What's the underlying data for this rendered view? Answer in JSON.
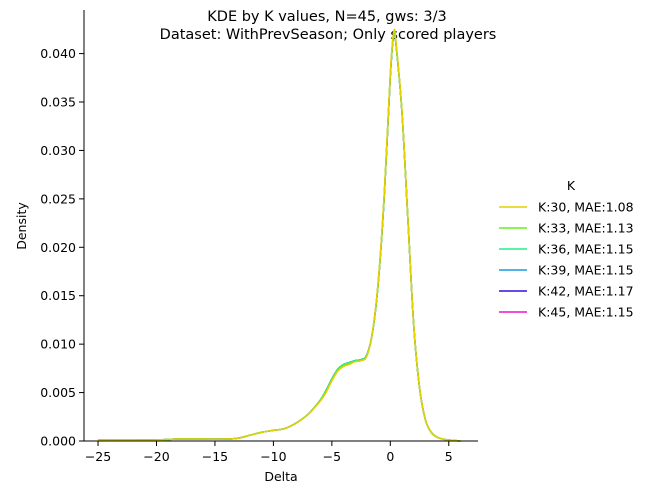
{
  "chart_data": {
    "type": "line",
    "title": "KDE by K values, N=45, gws: 3/3",
    "subtitle": "Dataset: WithPrevSeason; Only scored players",
    "xlabel": "Delta",
    "ylabel": "Density",
    "xlim": [
      -26.2,
      7.5
    ],
    "ylim": [
      0,
      0.0445
    ],
    "xticks": [
      -25,
      -20,
      -15,
      -10,
      -5,
      0,
      5
    ],
    "xtick_labels": [
      "−25",
      "−20",
      "−15",
      "−10",
      "−5",
      "0",
      "5"
    ],
    "yticks": [
      0.0,
      0.005,
      0.01,
      0.015,
      0.02,
      0.025,
      0.03,
      0.035,
      0.04
    ],
    "ytick_labels": [
      "0.000",
      "0.005",
      "0.010",
      "0.015",
      "0.020",
      "0.025",
      "0.030",
      "0.035",
      "0.040"
    ],
    "grid": false,
    "legend": {
      "title": "K",
      "placement": "right"
    },
    "x": [
      -25,
      -22,
      -20,
      -18,
      -16,
      -14,
      -13,
      -12,
      -11,
      -10,
      -9,
      -8,
      -7,
      -6,
      -5.5,
      -5,
      -4.5,
      -4,
      -3.5,
      -3,
      -2.5,
      -2,
      -1.5,
      -1,
      -0.5,
      0,
      0.3,
      0.5,
      1,
      1.5,
      2,
      2.5,
      3,
      3.5,
      4,
      4.5,
      5,
      6
    ],
    "series": [
      {
        "name": "K:30, MAE:1.08",
        "color": "#e5d000",
        "values": [
          0.0001,
          0.0001,
          0.0001,
          0.0002,
          0.0002,
          0.0002,
          0.0003,
          0.0006,
          0.0009,
          0.0011,
          0.0013,
          0.0019,
          0.0028,
          0.0041,
          0.005,
          0.0062,
          0.0072,
          0.0077,
          0.0079,
          0.0082,
          0.0083,
          0.0088,
          0.0115,
          0.017,
          0.026,
          0.038,
          0.0423,
          0.041,
          0.034,
          0.023,
          0.012,
          0.0055,
          0.0022,
          0.0009,
          0.0004,
          0.0002,
          0.0001,
          0.0
        ]
      },
      {
        "name": "K:33, MAE:1.13",
        "color": "#66ee22",
        "values": [
          0.0001,
          0.0001,
          0.0001,
          0.0002,
          0.0002,
          0.0002,
          0.0003,
          0.0006,
          0.0009,
          0.0011,
          0.0013,
          0.0019,
          0.0028,
          0.0042,
          0.0051,
          0.0063,
          0.0073,
          0.0078,
          0.008,
          0.0082,
          0.0083,
          0.0088,
          0.0114,
          0.0168,
          0.0258,
          0.0378,
          0.0422,
          0.0409,
          0.0339,
          0.023,
          0.012,
          0.0055,
          0.0022,
          0.0009,
          0.0004,
          0.0002,
          0.0001,
          0.0
        ]
      },
      {
        "name": "K:36, MAE:1.15",
        "color": "#22ee88",
        "values": [
          0.0001,
          0.0001,
          0.0001,
          0.0002,
          0.0002,
          0.0002,
          0.0003,
          0.0006,
          0.0009,
          0.0011,
          0.0013,
          0.0019,
          0.0028,
          0.0042,
          0.0052,
          0.0064,
          0.0074,
          0.0079,
          0.0081,
          0.0083,
          0.0084,
          0.0089,
          0.0114,
          0.0168,
          0.0257,
          0.0377,
          0.0421,
          0.0408,
          0.0339,
          0.023,
          0.012,
          0.0055,
          0.0022,
          0.0009,
          0.0004,
          0.0002,
          0.0001,
          0.0
        ]
      },
      {
        "name": "K:39, MAE:1.15",
        "color": "#1a99dd",
        "values": [
          0.0001,
          0.0001,
          0.0001,
          0.0002,
          0.0002,
          0.0002,
          0.0003,
          0.0006,
          0.0009,
          0.0011,
          0.0013,
          0.0019,
          0.0028,
          0.0042,
          0.0052,
          0.0064,
          0.0074,
          0.0079,
          0.0081,
          0.0083,
          0.0084,
          0.0089,
          0.0114,
          0.0168,
          0.0257,
          0.0377,
          0.0421,
          0.0408,
          0.0339,
          0.023,
          0.012,
          0.0055,
          0.0022,
          0.0009,
          0.0004,
          0.0002,
          0.0001,
          0.0
        ]
      },
      {
        "name": "K:42, MAE:1.17",
        "color": "#3311dd",
        "values": [
          0.0001,
          0.0001,
          0.0001,
          0.0002,
          0.0002,
          0.0002,
          0.0003,
          0.0006,
          0.0009,
          0.0011,
          0.0013,
          0.0019,
          0.0028,
          0.0042,
          0.0052,
          0.0064,
          0.0074,
          0.0079,
          0.0081,
          0.0083,
          0.0084,
          0.0089,
          0.0114,
          0.0168,
          0.0257,
          0.0377,
          0.0421,
          0.0408,
          0.0339,
          0.023,
          0.012,
          0.0055,
          0.0022,
          0.0009,
          0.0004,
          0.0002,
          0.0001,
          0.0
        ]
      },
      {
        "name": "K:45, MAE:1.15",
        "color": "#ee11cc",
        "values": [
          0.0001,
          0.0001,
          0.0001,
          0.0002,
          0.0002,
          0.0002,
          0.0003,
          0.0006,
          0.0009,
          0.0011,
          0.0013,
          0.0019,
          0.0028,
          0.0042,
          0.0052,
          0.0064,
          0.0074,
          0.0079,
          0.0081,
          0.0083,
          0.0084,
          0.0089,
          0.0114,
          0.0168,
          0.0257,
          0.0377,
          0.0421,
          0.0408,
          0.0339,
          0.023,
          0.012,
          0.0055,
          0.0022,
          0.0009,
          0.0004,
          0.0002,
          0.0001,
          0.0
        ]
      }
    ]
  }
}
